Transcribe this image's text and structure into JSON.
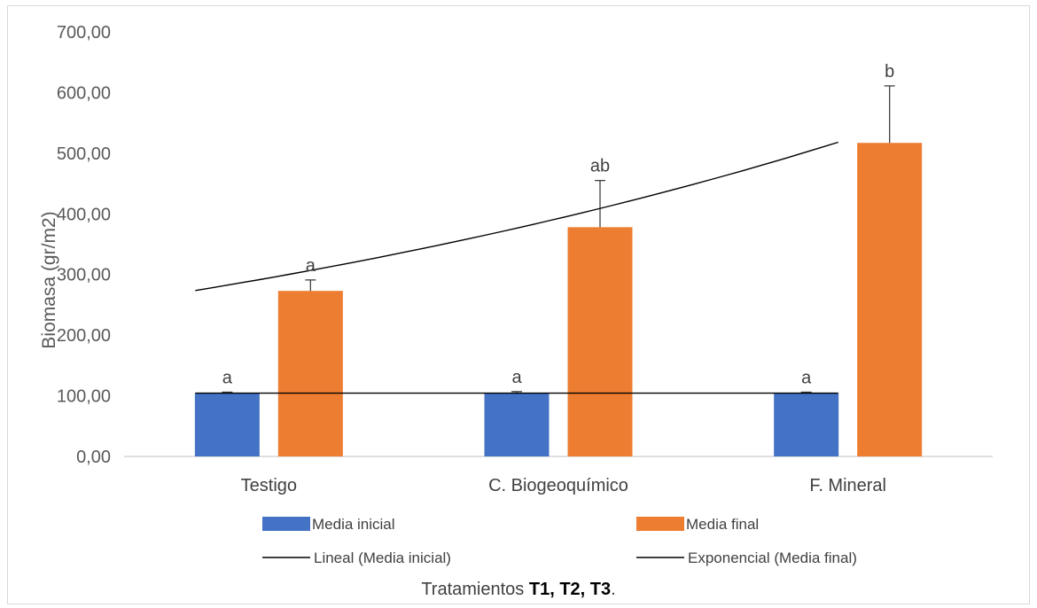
{
  "chart_data": {
    "type": "bar",
    "categories": [
      "Testigo",
      "C. Biogeoquímico",
      "F. Mineral"
    ],
    "series": [
      {
        "name": "Media inicial",
        "color": "#4472c4",
        "values": [
          104,
          105,
          104
        ],
        "errors": [
          2,
          2,
          2
        ],
        "labels": [
          "a",
          "a",
          "a"
        ]
      },
      {
        "name": "Media final",
        "color": "#ed7d31",
        "values": [
          273,
          378,
          517
        ],
        "errors": [
          18,
          77,
          94
        ],
        "labels": [
          "a",
          "ab",
          "b"
        ]
      }
    ],
    "trendlines": [
      {
        "name": "Lineal (Media inicial)",
        "series": "Media inicial",
        "kind": "linear",
        "color": "#000000"
      },
      {
        "name": "Exponencial (Media final)",
        "series": "Media final",
        "kind": "exponential",
        "color": "#000000"
      }
    ],
    "ylabel": "Biomasa (gr/m2)",
    "xlabel": {
      "prefix": "Tratamientos ",
      "bold": "T1, T2, T3",
      "suffix": "."
    },
    "ylim": [
      0,
      700
    ],
    "yticks": [
      "0,00",
      "100,00",
      "200,00",
      "300,00",
      "400,00",
      "500,00",
      "600,00",
      "700,00"
    ],
    "legend_position": "bottom"
  }
}
